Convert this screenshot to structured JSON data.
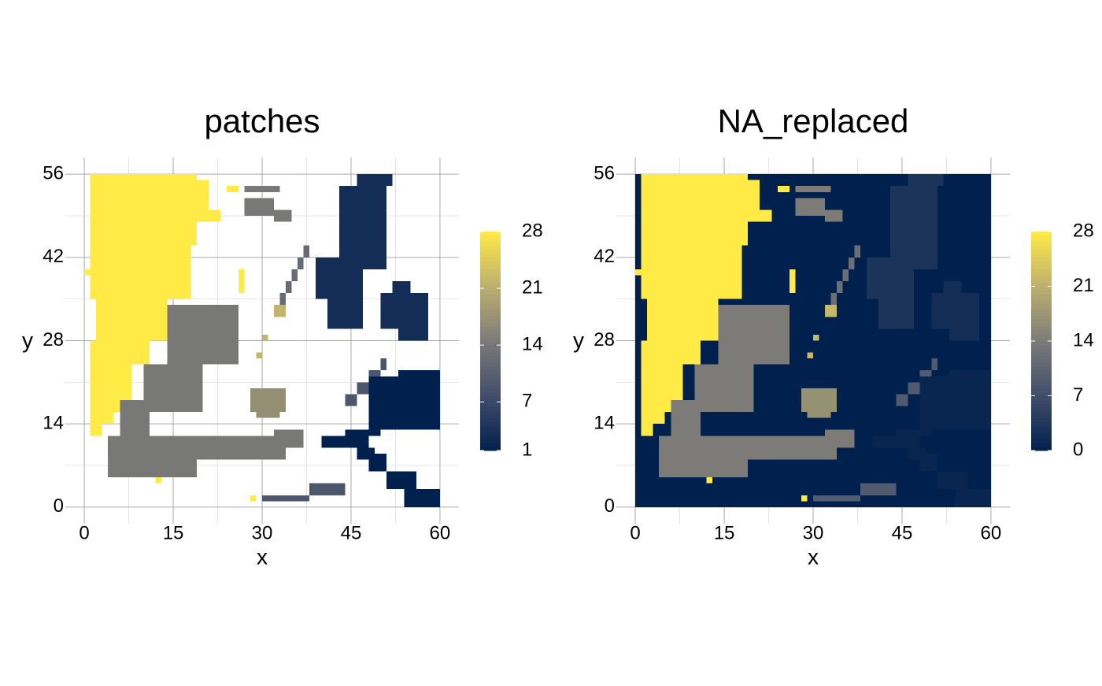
{
  "chart_data": [
    {
      "type": "raster",
      "title": "patches",
      "xlabel": "x",
      "ylabel": "y",
      "xlim": [
        -3.2,
        63.2
      ],
      "ylim": [
        -2.8,
        58.8
      ],
      "xticks": [
        0,
        15,
        30,
        45,
        60
      ],
      "yticks": [
        0,
        14,
        28,
        42,
        56
      ],
      "grid": true,
      "colors": [
        "#00204D",
        "#414D6B",
        "#7C7B78",
        "#BCAF6F",
        "#FFEA46"
      ],
      "colorbar": {
        "lim": [
          1,
          28
        ],
        "ticks": [
          1,
          7,
          14,
          21,
          28
        ]
      },
      "patches": [
        {
          "value": 28,
          "rects": [
            [
              1,
              44,
              19,
              56
            ],
            [
              19,
              50,
              21,
              55
            ],
            [
              19,
              48,
              23,
              50
            ],
            [
              24,
              53,
              26,
              54
            ],
            [
              1,
              35,
              18,
              44
            ],
            [
              0,
              39,
              1,
              40
            ],
            [
              2,
              28,
              14,
              35
            ],
            [
              3,
              24,
              11,
              28
            ],
            [
              1,
              16,
              8,
              28
            ],
            [
              1,
              12,
              3,
              16
            ],
            [
              3,
              14,
              5,
              16
            ],
            [
              26,
              36,
              27,
              40
            ],
            [
              12,
              4,
              13,
              5
            ],
            [
              28,
              1,
              29,
              2
            ]
          ]
        },
        {
          "value": 14,
          "rects": [
            [
              14,
              24,
              26,
              34
            ],
            [
              10,
              16,
              20,
              24
            ],
            [
              6,
              12,
              11,
              18
            ],
            [
              4,
              5,
              19,
              12
            ],
            [
              14,
              8,
              34,
              12
            ],
            [
              32,
              10,
              37,
              13
            ],
            [
              27,
              49,
              32,
              52
            ],
            [
              27,
              53,
              33,
              54
            ],
            [
              32,
              48,
              35,
              50
            ]
          ]
        },
        {
          "value": 17,
          "rects": [
            [
              28,
              16,
              34,
              20
            ],
            [
              29,
              15,
              33,
              16
            ]
          ]
        },
        {
          "value": 12,
          "rects": [
            [
              33,
              34,
              34,
              36
            ],
            [
              34,
              36,
              35,
              38
            ],
            [
              35,
              38,
              36,
              40
            ],
            [
              36,
              40,
              37,
              42
            ],
            [
              37,
              42,
              38,
              44
            ]
          ]
        },
        {
          "value": 22,
          "rects": [
            [
              32,
              32,
              34,
              34
            ],
            [
              29,
              25,
              30,
              26
            ],
            [
              30,
              28,
              31,
              29
            ]
          ]
        },
        {
          "value": 9,
          "rects": [
            [
              30,
              1,
              38,
              2
            ],
            [
              38,
              2,
              44,
              4
            ],
            [
              44,
              17,
              46,
              19
            ],
            [
              46,
              19,
              48,
              21
            ],
            [
              48,
              21,
              50,
              23
            ],
            [
              50,
              23,
              51,
              25
            ]
          ]
        },
        {
          "value": 3,
          "rects": [
            [
              43,
              40,
              51,
              54
            ],
            [
              46,
              54,
              52,
              56
            ],
            [
              39,
              35,
              47,
              42
            ],
            [
              41,
              30,
              47,
              35
            ],
            [
              50,
              30,
              58,
              36
            ],
            [
              53,
              28,
              58,
              30
            ],
            [
              52,
              36,
              55,
              38
            ]
          ]
        },
        {
          "value": 1,
          "rects": [
            [
              48,
              13,
              60,
              22
            ],
            [
              53,
              22,
              60,
              23
            ],
            [
              40,
              10,
              48,
              12
            ],
            [
              44,
              12,
              50,
              13
            ],
            [
              48,
              6,
              51,
              9
            ],
            [
              51,
              3,
              56,
              6
            ],
            [
              54,
              0,
              60,
              3
            ],
            [
              46,
              8,
              49,
              10
            ]
          ]
        }
      ]
    },
    {
      "type": "raster",
      "title": "NA_replaced",
      "xlabel": "x",
      "ylabel": "y",
      "xlim": [
        -3.2,
        63.2
      ],
      "ylim": [
        -2.8,
        58.8
      ],
      "xticks": [
        0,
        15,
        30,
        45,
        60
      ],
      "yticks": [
        0,
        14,
        28,
        42,
        56
      ],
      "grid": true,
      "colors": [
        "#00204D",
        "#414D6B",
        "#7C7B78",
        "#BCAF6F",
        "#FFEA46"
      ],
      "colorbar": {
        "lim": [
          0,
          28
        ],
        "ticks": [
          0,
          7,
          14,
          21,
          28
        ]
      },
      "patches": [
        {
          "value": 0,
          "rects": [
            [
              0,
              0,
              60,
              56
            ]
          ]
        },
        {
          "value": 28,
          "rects": [
            [
              1,
              44,
              19,
              56
            ],
            [
              19,
              50,
              21,
              55
            ],
            [
              19,
              48,
              23,
              50
            ],
            [
              24,
              53,
              26,
              54
            ],
            [
              1,
              35,
              18,
              44
            ],
            [
              0,
              39,
              1,
              40
            ],
            [
              2,
              28,
              14,
              35
            ],
            [
              3,
              24,
              11,
              28
            ],
            [
              1,
              16,
              8,
              28
            ],
            [
              1,
              12,
              3,
              16
            ],
            [
              3,
              14,
              5,
              16
            ],
            [
              26,
              36,
              27,
              40
            ],
            [
              12,
              4,
              13,
              5
            ],
            [
              28,
              1,
              29,
              2
            ]
          ]
        },
        {
          "value": 14,
          "rects": [
            [
              14,
              24,
              26,
              34
            ],
            [
              10,
              16,
              20,
              24
            ],
            [
              6,
              12,
              11,
              18
            ],
            [
              4,
              5,
              19,
              12
            ],
            [
              14,
              8,
              34,
              12
            ],
            [
              32,
              10,
              37,
              13
            ],
            [
              27,
              49,
              32,
              52
            ],
            [
              27,
              53,
              33,
              54
            ],
            [
              32,
              48,
              35,
              50
            ]
          ]
        },
        {
          "value": 17,
          "rects": [
            [
              28,
              16,
              34,
              20
            ],
            [
              29,
              15,
              33,
              16
            ]
          ]
        },
        {
          "value": 12,
          "rects": [
            [
              33,
              34,
              34,
              36
            ],
            [
              34,
              36,
              35,
              38
            ],
            [
              35,
              38,
              36,
              40
            ],
            [
              36,
              40,
              37,
              42
            ],
            [
              37,
              42,
              38,
              44
            ]
          ]
        },
        {
          "value": 22,
          "rects": [
            [
              32,
              32,
              34,
              34
            ],
            [
              29,
              25,
              30,
              26
            ],
            [
              30,
              28,
              31,
              29
            ]
          ]
        },
        {
          "value": 9,
          "rects": [
            [
              30,
              1,
              38,
              2
            ],
            [
              38,
              2,
              44,
              4
            ],
            [
              44,
              17,
              46,
              19
            ],
            [
              46,
              19,
              48,
              21
            ],
            [
              48,
              21,
              50,
              23
            ],
            [
              50,
              23,
              51,
              25
            ]
          ]
        },
        {
          "value": 3,
          "rects": [
            [
              43,
              40,
              51,
              54
            ],
            [
              46,
              54,
              52,
              56
            ],
            [
              39,
              35,
              47,
              42
            ],
            [
              41,
              30,
              47,
              35
            ]
          ]
        },
        {
          "value": 2,
          "rects": [
            [
              50,
              30,
              58,
              36
            ],
            [
              53,
              28,
              58,
              30
            ],
            [
              52,
              36,
              55,
              38
            ]
          ]
        },
        {
          "value": 1,
          "rects": [
            [
              48,
              13,
              60,
              22
            ],
            [
              53,
              22,
              60,
              23
            ],
            [
              40,
              10,
              48,
              12
            ],
            [
              44,
              12,
              50,
              13
            ],
            [
              48,
              6,
              51,
              9
            ],
            [
              51,
              3,
              56,
              6
            ],
            [
              54,
              0,
              60,
              3
            ],
            [
              46,
              8,
              49,
              10
            ]
          ]
        }
      ]
    }
  ]
}
